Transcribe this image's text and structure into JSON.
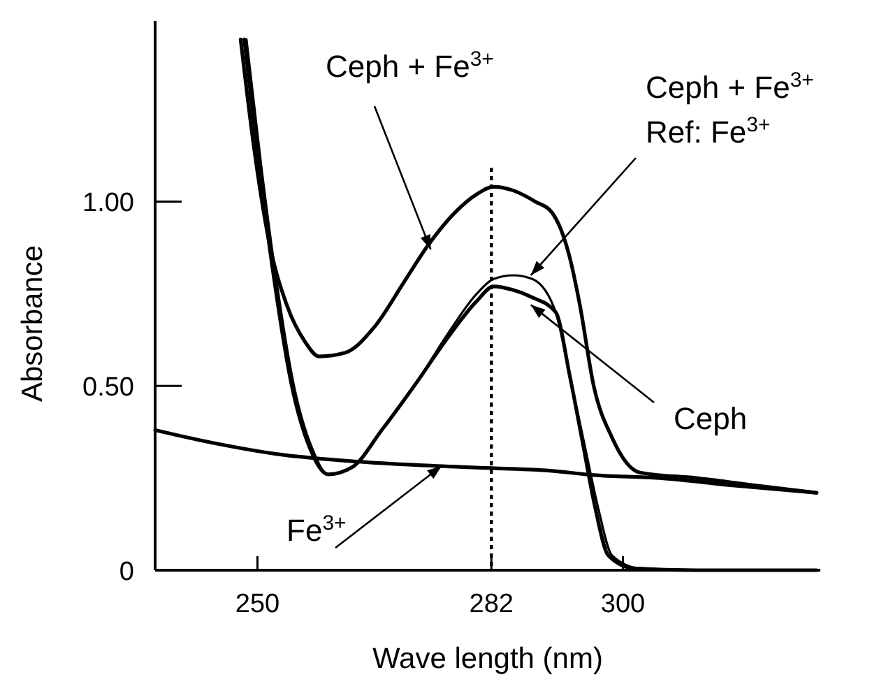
{
  "chart_data": {
    "type": "line",
    "xlabel": "Wave length (nm)",
    "ylabel": "Absorbance",
    "xlim": [
      236,
      327
    ],
    "ylim": [
      0,
      1.49
    ],
    "xticks": [
      250,
      282,
      300
    ],
    "yticks": [
      {
        "value": 0,
        "label": "0"
      },
      {
        "value": 0.5,
        "label": "0.50"
      },
      {
        "value": 1,
        "label": "1.00"
      }
    ],
    "grid": false,
    "marker": "none",
    "line_style": "solid",
    "annotations": [
      {
        "text": "Ceph + Fe$^{3+}$",
        "x": 273.7,
        "y": 0.87
      },
      "Ceph + Fe$^{3+}$",
      {
        "text": "Ref: Fe$^{3+}$",
        "x": 287.4,
        "y": 0.8
      },
      {
        "text": "Ceph",
        "x": 287.4,
        "y": 0.72
      },
      {
        "text": "Fe$^{3+}$",
        "x": 275.2,
        "y": 0.283
      }
    ],
    "ref_lines": [
      {
        "axis": "x",
        "value": 282,
        "line_style": "dotted",
        "color": "#000000"
      }
    ],
    "series": [
      {
        "color": "#000000",
        "x": [
          247.7,
          249.5,
          251.5,
          254,
          256.5,
          258.4,
          262,
          266,
          270,
          273.1,
          277,
          280,
          282.3,
          285,
          288,
          290.3,
          292.7,
          294.1,
          296,
          298.5,
          302.3,
          310,
          318,
          326.5
        ],
        "values": [
          1.44,
          1.15,
          0.9,
          0.72,
          0.62,
          0.58,
          0.59,
          0.66,
          0.78,
          0.875,
          0.97,
          1.02,
          1.04,
          1.03,
          1.0,
          0.97,
          0.85,
          0.72,
          0.5,
          0.36,
          0.265,
          0.25,
          0.23,
          0.21
        ]
      },
      {
        "color": "#000000",
        "x": [
          248.5,
          250.5,
          252.5,
          255,
          257.5,
          259.7,
          263,
          267,
          271.8,
          276,
          280,
          282.3,
          285,
          287.6,
          290.8,
          292.7,
          294.7,
          296.6,
          298.5,
          302.3,
          310,
          326.5
        ],
        "values": [
          1.44,
          1.1,
          0.8,
          0.5,
          0.33,
          0.26,
          0.28,
          0.38,
          0.51,
          0.64,
          0.75,
          0.79,
          0.8,
          0.79,
          0.7,
          0.53,
          0.345,
          0.17,
          0.04,
          0.005,
          0,
          0
        ]
      },
      {
        "color": "#000000",
        "x": [
          248.2,
          250.2,
          252.2,
          254.7,
          257.2,
          259.7,
          263,
          267,
          271.8,
          276,
          280,
          282.3,
          285,
          287.6,
          290.8,
          292.7,
          294.5,
          296.2,
          298,
          301.5,
          310,
          326.5
        ],
        "values": [
          1.44,
          1.1,
          0.8,
          0.5,
          0.33,
          0.26,
          0.28,
          0.38,
          0.51,
          0.63,
          0.73,
          0.77,
          0.76,
          0.74,
          0.7,
          0.53,
          0.345,
          0.17,
          0.04,
          0.005,
          0,
          0
        ]
      },
      {
        "color": "#000000",
        "x": [
          236,
          244,
          252.7,
          262,
          272,
          282,
          290,
          296,
          305,
          315,
          326.5
        ],
        "values": [
          0.38,
          0.345,
          0.315,
          0.297,
          0.285,
          0.277,
          0.27,
          0.258,
          0.25,
          0.23,
          0.21
        ]
      }
    ]
  }
}
